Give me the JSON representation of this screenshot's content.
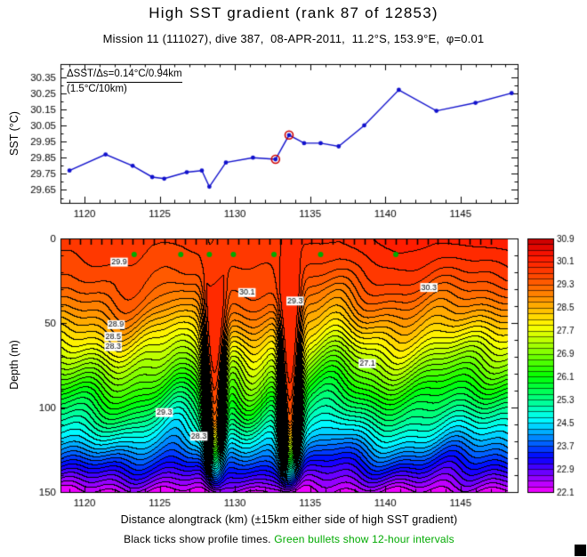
{
  "title": "High SST gradient (rank 87 of 12853)",
  "subtitle": "Mission 11 (111027), dive 387,  08-APR-2011,  11.2°S, 153.9°E,  φ=0.01",
  "footer": {
    "black_note": "Black ticks show profile times. ",
    "green_note": "Green bullets show 12-hour intervals",
    "green_color": "#00aa00"
  },
  "chart_data": [
    {
      "type": "line",
      "name": "sst-alongtrack",
      "ylabel": "SST (°C)",
      "xlim": [
        1118.4,
        1148.8
      ],
      "ylim": [
        29.57,
        30.43
      ],
      "xticks": [
        1120,
        1125,
        1130,
        1135,
        1140,
        1145
      ],
      "yticks": [
        29.65,
        29.75,
        29.85,
        29.95,
        30.05,
        30.15,
        30.25,
        30.35
      ],
      "x": [
        1119.0,
        1121.4,
        1123.2,
        1124.5,
        1125.3,
        1126.8,
        1127.8,
        1128.3,
        1129.4,
        1131.2,
        1132.7,
        1133.6,
        1134.6,
        1135.7,
        1136.9,
        1138.6,
        1140.9,
        1143.4,
        1146.0,
        1148.4
      ],
      "y": [
        29.77,
        29.87,
        29.8,
        29.73,
        29.72,
        29.76,
        29.77,
        29.67,
        29.82,
        29.85,
        29.84,
        29.99,
        29.94,
        29.94,
        29.92,
        30.05,
        30.27,
        30.14,
        30.19,
        30.25
      ],
      "highlight_indices": [
        10,
        11
      ],
      "line_color": "#1111cc",
      "highlight_color": "#cc0000",
      "annotation": {
        "line1": "ΔSST/Δs=0.14°C/0.94km",
        "line2": "(1.5°C/10km)"
      }
    },
    {
      "type": "heatmap",
      "name": "temperature-depth-section",
      "xlabel": "Distance alongtrack (km) (±15km either side of high SST gradient)",
      "ylabel": "Depth (m)",
      "xlim": [
        1118.4,
        1148.8
      ],
      "depth_lim": [
        0,
        150
      ],
      "xticks": [
        1120,
        1125,
        1130,
        1135,
        1140,
        1145
      ],
      "yticks": [
        0,
        50,
        100,
        150
      ],
      "temp_min": 22.1,
      "temp_max": 30.9,
      "contour_interval": 0.2,
      "colorbar_labels": [
        "30.9",
        "30.1",
        "29.3",
        "28.5",
        "27.7",
        "26.9",
        "26.1",
        "25.3",
        "24.5",
        "23.7",
        "22.9",
        "22.1"
      ],
      "field_xrange": [
        1118.45,
        1148.1
      ],
      "base_profile": {
        "depths": [
          0,
          10,
          20,
          30,
          40,
          50,
          60,
          70,
          80,
          90,
          100,
          110,
          120,
          130,
          140,
          150
        ],
        "temps": [
          30.0,
          29.85,
          29.65,
          29.35,
          28.95,
          28.45,
          27.9,
          27.3,
          26.7,
          26.1,
          25.5,
          24.9,
          24.3,
          23.6,
          22.9,
          22.2
        ]
      },
      "front_bumps": [
        {
          "x0": 1128.6,
          "amp": 72,
          "width": 0.6
        },
        {
          "x0": 1133.6,
          "amp": 78,
          "width": 0.6
        },
        {
          "x0": 1122.5,
          "amp": 9,
          "width": 1.6
        },
        {
          "x0": 1126.2,
          "amp": -7,
          "width": 1.1
        },
        {
          "x0": 1131.0,
          "amp": 12,
          "width": 1.2
        },
        {
          "x0": 1136.6,
          "amp": -9,
          "width": 1.4
        },
        {
          "x0": 1140.5,
          "amp": 7,
          "width": 2.2
        },
        {
          "x0": 1144.5,
          "amp": -5,
          "width": 2.0
        }
      ],
      "isoline_wiggles": [
        {
          "amp": 2.2,
          "xfreq": 2.0,
          "zfreq": 0.05
        },
        {
          "amp": 1.6,
          "xfreq": 0.85,
          "zfreq": 0.12
        }
      ],
      "green_bullets_x": [
        1123.3,
        1126.4,
        1128.3,
        1129.9,
        1132.6,
        1135.7,
        1140.7
      ],
      "bullet_depth_m": 9.5,
      "bullet_color": "#00aa00",
      "profile_ticks": {
        "start": 1119.0,
        "end": 1147.4,
        "step": 0.7
      },
      "contour_labels": [
        {
          "x": 1122.3,
          "depth": 14,
          "text": "29.9"
        },
        {
          "x": 1130.8,
          "depth": 32,
          "text": "30.1"
        },
        {
          "x": 1134.0,
          "depth": 37,
          "text": "29.3"
        },
        {
          "x": 1122.1,
          "depth": 51,
          "text": "28.9"
        },
        {
          "x": 1121.9,
          "depth": 58,
          "text": "28.5"
        },
        {
          "x": 1121.9,
          "depth": 64,
          "text": "28.3"
        },
        {
          "x": 1125.3,
          "depth": 103,
          "text": "29.3"
        },
        {
          "x": 1138.8,
          "depth": 74,
          "text": "27.1"
        },
        {
          "x": 1127.6,
          "depth": 117,
          "text": "28.3"
        },
        {
          "x": 1142.9,
          "depth": 29,
          "text": "30.3"
        }
      ]
    }
  ]
}
